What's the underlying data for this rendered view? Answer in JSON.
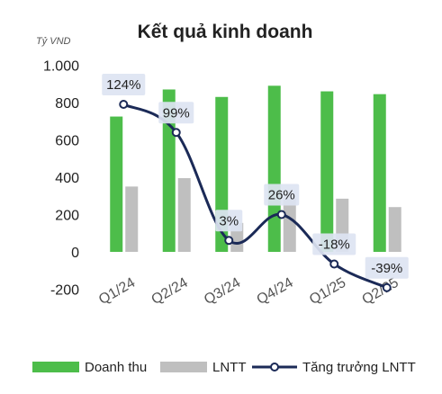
{
  "chart_data": {
    "type": "bar",
    "title": "Kết quả kinh doanh",
    "unit_label": "Tỷ VND",
    "categories": [
      "Q1/24",
      "Q2/24",
      "Q3/24",
      "Q4/24",
      "Q1/25",
      "Q2/25"
    ],
    "ylim": [
      -200,
      1000
    ],
    "yticks": [
      -200,
      0,
      200,
      400,
      600,
      800,
      1000
    ],
    "ytick_labels": [
      "-200",
      "0",
      "200",
      "400",
      "600",
      "800",
      "1.000"
    ],
    "series": [
      {
        "name": "Doanh thu",
        "type": "bar",
        "color": "#4dbd4a",
        "values": [
          725,
          870,
          830,
          890,
          860,
          845
        ]
      },
      {
        "name": "LNTT",
        "type": "bar",
        "color": "#bfbfbf",
        "values": [
          350,
          395,
          155,
          285,
          285,
          240
        ]
      },
      {
        "name": "Tăng trưởng LNTT",
        "type": "line",
        "color": "#1b2a57",
        "values": [
          124,
          99,
          3,
          26,
          -18,
          -39
        ],
        "labels": [
          "124%",
          "99%",
          "3%",
          "26%",
          "-18%",
          "-39%"
        ]
      }
    ],
    "legend_position": "bottom",
    "grid": false
  }
}
